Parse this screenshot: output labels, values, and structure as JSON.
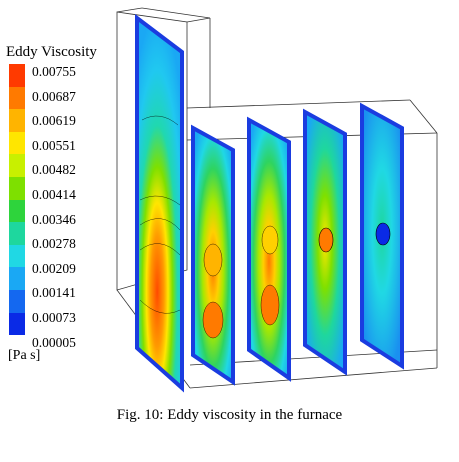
{
  "legend": {
    "title": "Eddy Viscosity",
    "unit": "[Pa s]",
    "ticks": [
      "0.00755",
      "0.00687",
      "0.00619",
      "0.00551",
      "0.00482",
      "0.00414",
      "0.00346",
      "0.00278",
      "0.00209",
      "0.00141",
      "0.00073",
      "0.00005"
    ],
    "colors": [
      "#ff3a00",
      "#ff7a00",
      "#ffb400",
      "#ffe600",
      "#c8f000",
      "#7ee000",
      "#2ed43c",
      "#1ed79e",
      "#20d8e4",
      "#1aa8f4",
      "#1468f0",
      "#0a2ae6"
    ]
  },
  "caption": "Fig. 10: Eddy viscosity in the furnace"
}
